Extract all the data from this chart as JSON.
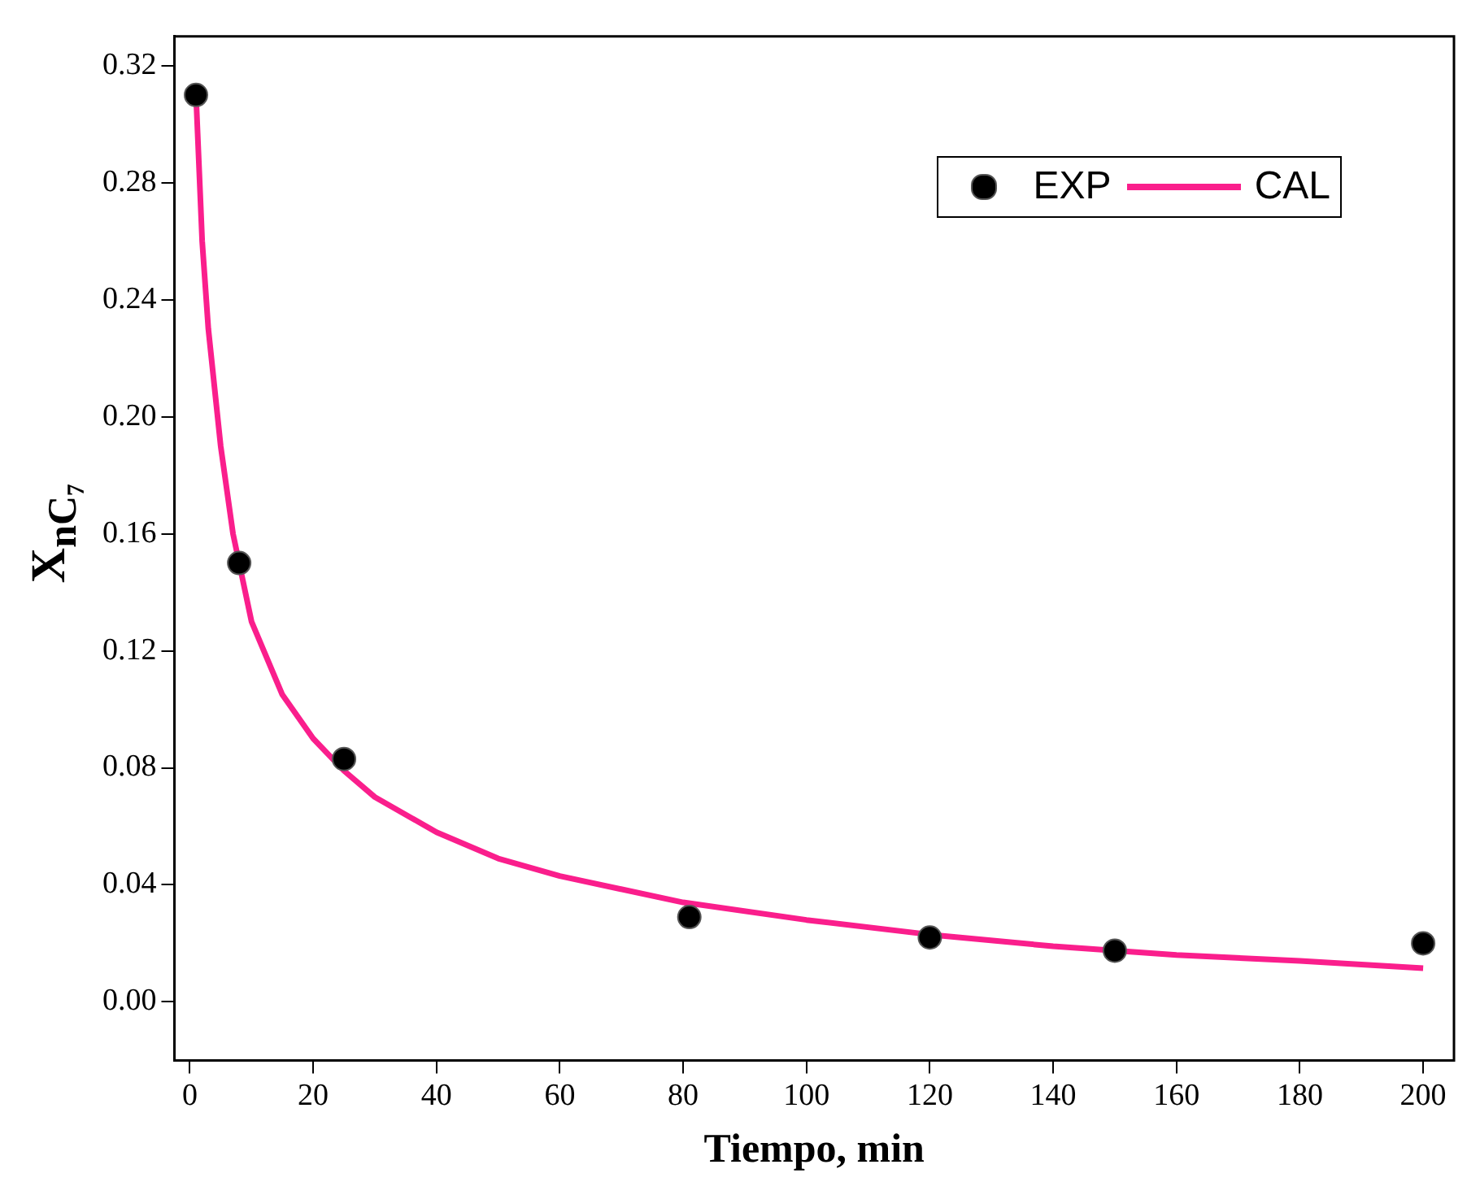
{
  "chart_data": {
    "type": "scatter",
    "xlabel": "Tiempo, min",
    "ylabel": "X$_{nC₇}$",
    "xlim": [
      -2.5,
      205
    ],
    "ylim": [
      -0.02,
      0.33
    ],
    "xticks": [
      0,
      20,
      40,
      60,
      80,
      100,
      120,
      140,
      160,
      180,
      200
    ],
    "yticks": [
      {
        "value": 0,
        "label": "0.00"
      },
      {
        "value": 0.04,
        "label": "0.04"
      },
      {
        "value": 0.08,
        "label": "0.08"
      },
      {
        "value": 0.12,
        "label": "0.12"
      },
      {
        "value": 0.16,
        "label": "0.16"
      },
      {
        "value": 0.2,
        "label": "0.20"
      },
      {
        "value": 0.24,
        "label": "0.24"
      },
      {
        "value": 0.28,
        "label": "0.28"
      },
      {
        "value": 0.32,
        "label": "0.32"
      }
    ],
    "grid": false,
    "legend": "top right",
    "series": [
      {
        "name": "EXP",
        "marker": "circle",
        "color": "#000000",
        "x": [
          1,
          8,
          25,
          81,
          120,
          150,
          200
        ],
        "values": [
          0.31,
          0.15,
          0.083,
          0.029,
          0.022,
          0.0175,
          0.02
        ]
      },
      {
        "name": "CAL",
        "type": "line",
        "marker": "none",
        "line_style": "solid",
        "color": "#fa1e8c",
        "x": [
          1,
          2,
          3,
          5,
          7,
          10,
          15,
          20,
          25,
          30,
          40,
          50,
          60,
          80,
          100,
          120,
          140,
          160,
          180,
          200
        ],
        "values": [
          0.31,
          0.26,
          0.23,
          0.19,
          0.16,
          0.13,
          0.105,
          0.09,
          0.079,
          0.07,
          0.058,
          0.049,
          0.043,
          0.034,
          0.028,
          0.023,
          0.019,
          0.016,
          0.014,
          0.0115
        ]
      }
    ]
  }
}
